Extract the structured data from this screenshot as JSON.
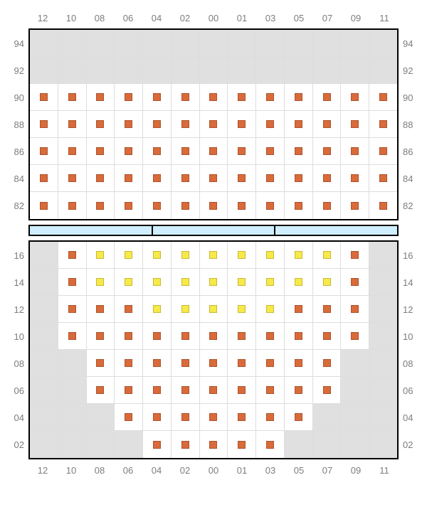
{
  "colors": {
    "seat_orange": "#d96a3a",
    "seat_yellow": "#f7e948",
    "bg_gray": "#e0e0e0",
    "bg_white": "#ffffff",
    "stage_fill": "#cfeeff",
    "border": "#000000",
    "grid": "#dddddd",
    "label": "#7d7d7d"
  },
  "column_labels": [
    "12",
    "10",
    "08",
    "06",
    "04",
    "02",
    "00",
    "01",
    "03",
    "05",
    "07",
    "09",
    "11"
  ],
  "upper": {
    "row_labels": [
      "94",
      "92",
      "90",
      "88",
      "86",
      "84",
      "82"
    ],
    "rows": [
      [
        [
          "g",
          null
        ],
        [
          "g",
          null
        ],
        [
          "g",
          null
        ],
        [
          "g",
          null
        ],
        [
          "g",
          null
        ],
        [
          "g",
          null
        ],
        [
          "g",
          null
        ],
        [
          "g",
          null
        ],
        [
          "g",
          null
        ],
        [
          "g",
          null
        ],
        [
          "g",
          null
        ],
        [
          "g",
          null
        ],
        [
          "g",
          null
        ]
      ],
      [
        [
          "g",
          null
        ],
        [
          "g",
          null
        ],
        [
          "g",
          null
        ],
        [
          "g",
          null
        ],
        [
          "g",
          null
        ],
        [
          "g",
          null
        ],
        [
          "g",
          null
        ],
        [
          "g",
          null
        ],
        [
          "g",
          null
        ],
        [
          "g",
          null
        ],
        [
          "g",
          null
        ],
        [
          "g",
          null
        ],
        [
          "g",
          null
        ]
      ],
      [
        [
          "w",
          "o"
        ],
        [
          "w",
          "o"
        ],
        [
          "w",
          "o"
        ],
        [
          "w",
          "o"
        ],
        [
          "w",
          "o"
        ],
        [
          "w",
          "o"
        ],
        [
          "w",
          "o"
        ],
        [
          "w",
          "o"
        ],
        [
          "w",
          "o"
        ],
        [
          "w",
          "o"
        ],
        [
          "w",
          "o"
        ],
        [
          "w",
          "o"
        ],
        [
          "w",
          "o"
        ]
      ],
      [
        [
          "w",
          "o"
        ],
        [
          "w",
          "o"
        ],
        [
          "w",
          "o"
        ],
        [
          "w",
          "o"
        ],
        [
          "w",
          "o"
        ],
        [
          "w",
          "o"
        ],
        [
          "w",
          "o"
        ],
        [
          "w",
          "o"
        ],
        [
          "w",
          "o"
        ],
        [
          "w",
          "o"
        ],
        [
          "w",
          "o"
        ],
        [
          "w",
          "o"
        ],
        [
          "w",
          "o"
        ]
      ],
      [
        [
          "w",
          "o"
        ],
        [
          "w",
          "o"
        ],
        [
          "w",
          "o"
        ],
        [
          "w",
          "o"
        ],
        [
          "w",
          "o"
        ],
        [
          "w",
          "o"
        ],
        [
          "w",
          "o"
        ],
        [
          "w",
          "o"
        ],
        [
          "w",
          "o"
        ],
        [
          "w",
          "o"
        ],
        [
          "w",
          "o"
        ],
        [
          "w",
          "o"
        ],
        [
          "w",
          "o"
        ]
      ],
      [
        [
          "w",
          "o"
        ],
        [
          "w",
          "o"
        ],
        [
          "w",
          "o"
        ],
        [
          "w",
          "o"
        ],
        [
          "w",
          "o"
        ],
        [
          "w",
          "o"
        ],
        [
          "w",
          "o"
        ],
        [
          "w",
          "o"
        ],
        [
          "w",
          "o"
        ],
        [
          "w",
          "o"
        ],
        [
          "w",
          "o"
        ],
        [
          "w",
          "o"
        ],
        [
          "w",
          "o"
        ]
      ],
      [
        [
          "w",
          "o"
        ],
        [
          "w",
          "o"
        ],
        [
          "w",
          "o"
        ],
        [
          "w",
          "o"
        ],
        [
          "w",
          "o"
        ],
        [
          "w",
          "o"
        ],
        [
          "w",
          "o"
        ],
        [
          "w",
          "o"
        ],
        [
          "w",
          "o"
        ],
        [
          "w",
          "o"
        ],
        [
          "w",
          "o"
        ],
        [
          "w",
          "o"
        ],
        [
          "w",
          "o"
        ]
      ]
    ],
    "label_offset": 0.5
  },
  "stage": {
    "segments": 3
  },
  "lower": {
    "row_labels": [
      "16",
      "14",
      "12",
      "10",
      "08",
      "06",
      "04",
      "02"
    ],
    "rows": [
      [
        [
          "g",
          null
        ],
        [
          "w",
          "o"
        ],
        [
          "w",
          "y"
        ],
        [
          "w",
          "y"
        ],
        [
          "w",
          "y"
        ],
        [
          "w",
          "y"
        ],
        [
          "w",
          "y"
        ],
        [
          "w",
          "y"
        ],
        [
          "w",
          "y"
        ],
        [
          "w",
          "y"
        ],
        [
          "w",
          "y"
        ],
        [
          "w",
          "o"
        ],
        [
          "g",
          null
        ]
      ],
      [
        [
          "g",
          null
        ],
        [
          "w",
          "o"
        ],
        [
          "w",
          "y"
        ],
        [
          "w",
          "y"
        ],
        [
          "w",
          "y"
        ],
        [
          "w",
          "y"
        ],
        [
          "w",
          "y"
        ],
        [
          "w",
          "y"
        ],
        [
          "w",
          "y"
        ],
        [
          "w",
          "y"
        ],
        [
          "w",
          "y"
        ],
        [
          "w",
          "o"
        ],
        [
          "g",
          null
        ]
      ],
      [
        [
          "g",
          null
        ],
        [
          "w",
          "o"
        ],
        [
          "w",
          "o"
        ],
        [
          "w",
          "o"
        ],
        [
          "w",
          "y"
        ],
        [
          "w",
          "y"
        ],
        [
          "w",
          "y"
        ],
        [
          "w",
          "y"
        ],
        [
          "w",
          "y"
        ],
        [
          "w",
          "o"
        ],
        [
          "w",
          "o"
        ],
        [
          "w",
          "o"
        ],
        [
          "g",
          null
        ]
      ],
      [
        [
          "g",
          null
        ],
        [
          "w",
          "o"
        ],
        [
          "w",
          "o"
        ],
        [
          "w",
          "o"
        ],
        [
          "w",
          "o"
        ],
        [
          "w",
          "o"
        ],
        [
          "w",
          "o"
        ],
        [
          "w",
          "o"
        ],
        [
          "w",
          "o"
        ],
        [
          "w",
          "o"
        ],
        [
          "w",
          "o"
        ],
        [
          "w",
          "o"
        ],
        [
          "g",
          null
        ]
      ],
      [
        [
          "g",
          null
        ],
        [
          "g",
          null
        ],
        [
          "w",
          "o"
        ],
        [
          "w",
          "o"
        ],
        [
          "w",
          "o"
        ],
        [
          "w",
          "o"
        ],
        [
          "w",
          "o"
        ],
        [
          "w",
          "o"
        ],
        [
          "w",
          "o"
        ],
        [
          "w",
          "o"
        ],
        [
          "w",
          "o"
        ],
        [
          "g",
          null
        ],
        [
          "g",
          null
        ]
      ],
      [
        [
          "g",
          null
        ],
        [
          "g",
          null
        ],
        [
          "w",
          "o"
        ],
        [
          "w",
          "o"
        ],
        [
          "w",
          "o"
        ],
        [
          "w",
          "o"
        ],
        [
          "w",
          "o"
        ],
        [
          "w",
          "o"
        ],
        [
          "w",
          "o"
        ],
        [
          "w",
          "o"
        ],
        [
          "w",
          "o"
        ],
        [
          "g",
          null
        ],
        [
          "g",
          null
        ]
      ],
      [
        [
          "g",
          null
        ],
        [
          "g",
          null
        ],
        [
          "g",
          null
        ],
        [
          "w",
          "o"
        ],
        [
          "w",
          "o"
        ],
        [
          "w",
          "o"
        ],
        [
          "w",
          "o"
        ],
        [
          "w",
          "o"
        ],
        [
          "w",
          "o"
        ],
        [
          "w",
          "o"
        ],
        [
          "g",
          null
        ],
        [
          "g",
          null
        ],
        [
          "g",
          null
        ]
      ],
      [
        [
          "g",
          null
        ],
        [
          "g",
          null
        ],
        [
          "g",
          null
        ],
        [
          "g",
          null
        ],
        [
          "w",
          "o"
        ],
        [
          "w",
          "o"
        ],
        [
          "w",
          "o"
        ],
        [
          "w",
          "o"
        ],
        [
          "w",
          "o"
        ],
        [
          "g",
          null
        ],
        [
          "g",
          null
        ],
        [
          "g",
          null
        ],
        [
          "g",
          null
        ]
      ]
    ],
    "label_offset": 0.5
  }
}
